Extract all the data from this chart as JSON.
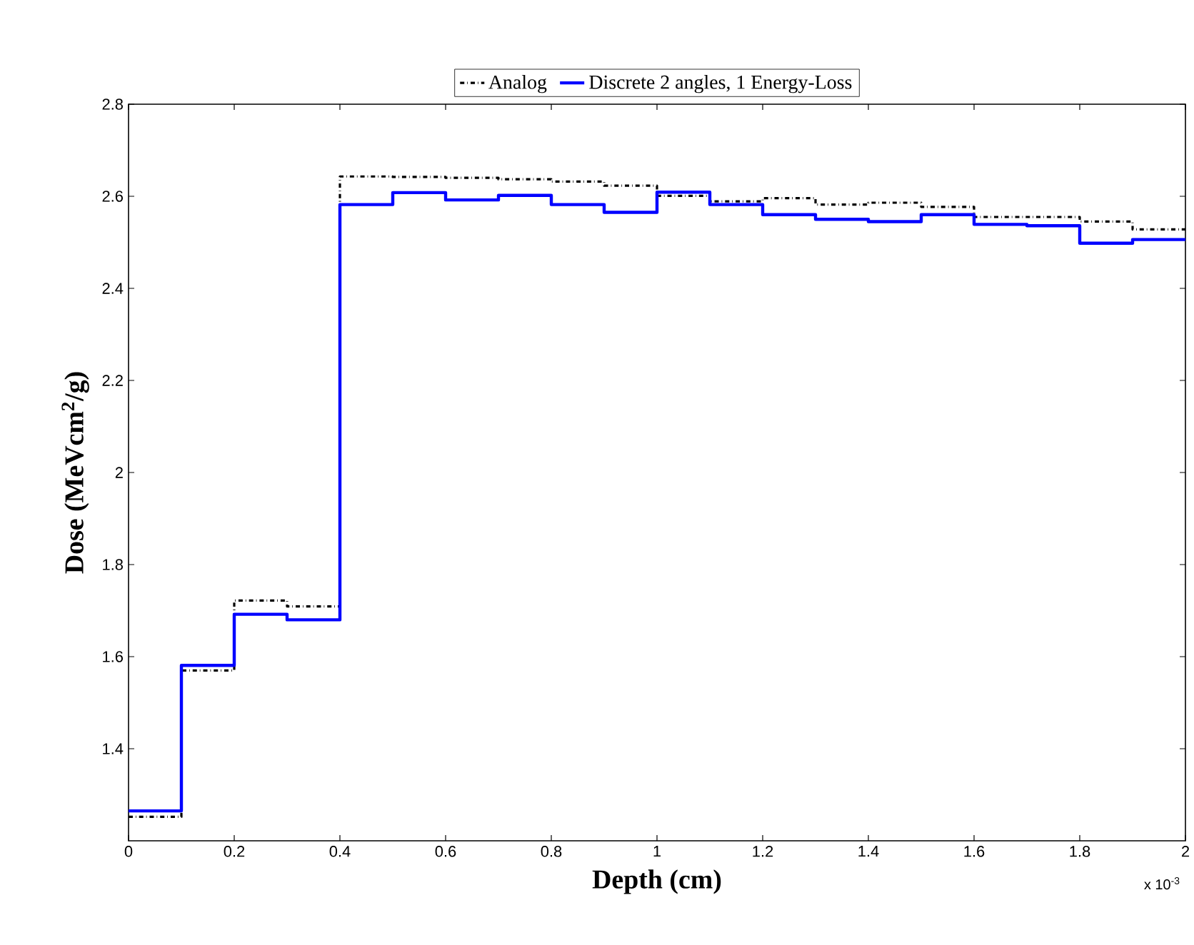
{
  "chart_data": {
    "type": "step",
    "xlabel": "Depth (cm)",
    "ylabel": "Dose (MeVcm$^{2}$/g)",
    "x": [
      0,
      0.1,
      0.2,
      0.3,
      0.4,
      0.5,
      0.6,
      0.7,
      0.8,
      0.9,
      1,
      1.1,
      1.2,
      1.3,
      1.4,
      1.5,
      1.6,
      1.7,
      1.8,
      1.9,
      2
    ],
    "series": [
      {
        "name": "Analog",
        "color": "#000000",
        "line_style": "dashdot",
        "values": [
          1.252,
          1.57,
          1.722,
          1.709,
          2.643,
          2.642,
          2.64,
          2.637,
          2.632,
          2.623,
          2.601,
          2.589,
          2.596,
          2.582,
          2.586,
          2.577,
          2.555,
          2.555,
          2.545,
          2.528,
          2.528
        ]
      },
      {
        "name": "Discrete 2 angles, 1 Energy-Loss",
        "color": "#0000ff",
        "line_style": "solid",
        "values": [
          1.265,
          1.581,
          1.692,
          1.68,
          2.582,
          2.608,
          2.592,
          2.602,
          2.582,
          2.565,
          2.609,
          2.582,
          2.56,
          2.55,
          2.545,
          2.56,
          2.539,
          2.536,
          2.498,
          2.506,
          2.506
        ]
      }
    ],
    "xlim": [
      0,
      2
    ],
    "xticks": [
      0,
      0.2,
      0.4,
      0.6,
      0.8,
      1,
      1.2,
      1.4,
      1.6,
      1.8,
      2
    ],
    "ylim": [
      1.2,
      2.8
    ],
    "yticks": [
      1.4,
      1.6,
      1.8,
      2,
      2.2,
      2.4,
      2.6,
      2.8
    ],
    "annotations": [
      "x 10$^{-3}$"
    ],
    "legend": "top",
    "grid": false
  }
}
